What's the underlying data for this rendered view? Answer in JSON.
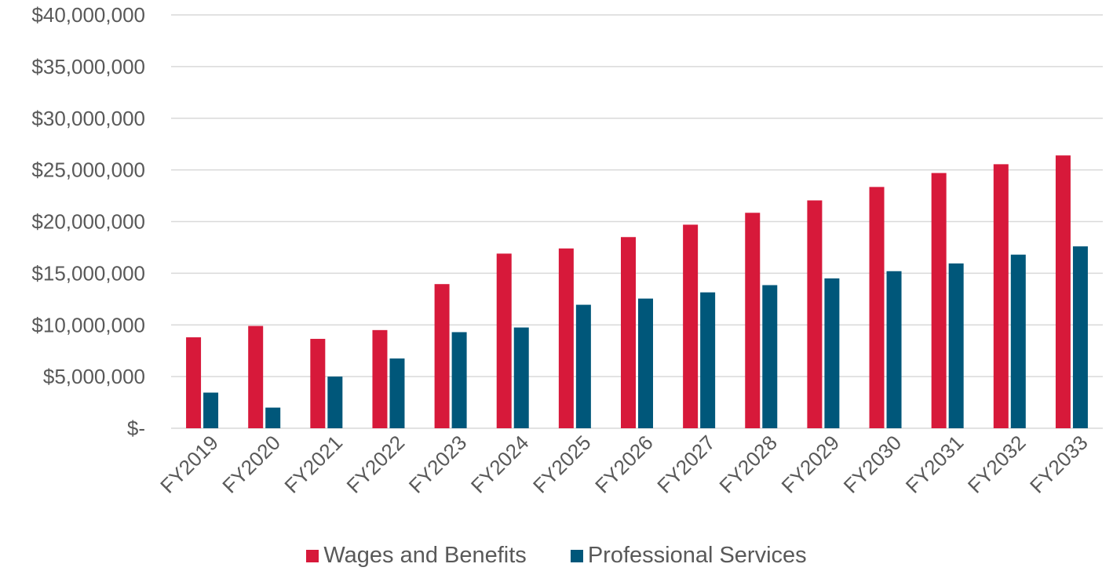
{
  "chart_data": {
    "type": "bar",
    "categories": [
      "FY2019",
      "FY2020",
      "FY2021",
      "FY2022",
      "FY2023",
      "FY2024",
      "FY2025",
      "FY2026",
      "FY2027",
      "FY2028",
      "FY2029",
      "FY2030",
      "FY2031",
      "FY2032",
      "FY2033"
    ],
    "series": [
      {
        "name": "Wages and Benefits",
        "color": "#d7193a",
        "values": [
          8800000,
          9900000,
          8650000,
          9500000,
          13950000,
          16900000,
          17400000,
          18500000,
          19700000,
          20850000,
          22050000,
          23350000,
          24700000,
          25550000,
          26400000
        ]
      },
      {
        "name": "Professional Services",
        "color": "#00577a",
        "values": [
          3450000,
          2000000,
          5000000,
          6750000,
          9300000,
          9750000,
          11950000,
          12550000,
          13150000,
          13850000,
          14500000,
          15200000,
          15950000,
          16800000,
          17600000
        ]
      }
    ],
    "ylim": [
      0,
      40000000
    ],
    "yticks": [
      0,
      5000000,
      10000000,
      15000000,
      20000000,
      25000000,
      30000000,
      35000000,
      40000000
    ],
    "ytick_labels": [
      "$-",
      "$5,000,000",
      "$10,000,000",
      "$15,000,000",
      "$20,000,000",
      "$25,000,000",
      "$30,000,000",
      "$35,000,000",
      "$40,000,000"
    ],
    "grid": true,
    "legend_position": "bottom",
    "gridline_color": "#d9d9d9"
  }
}
